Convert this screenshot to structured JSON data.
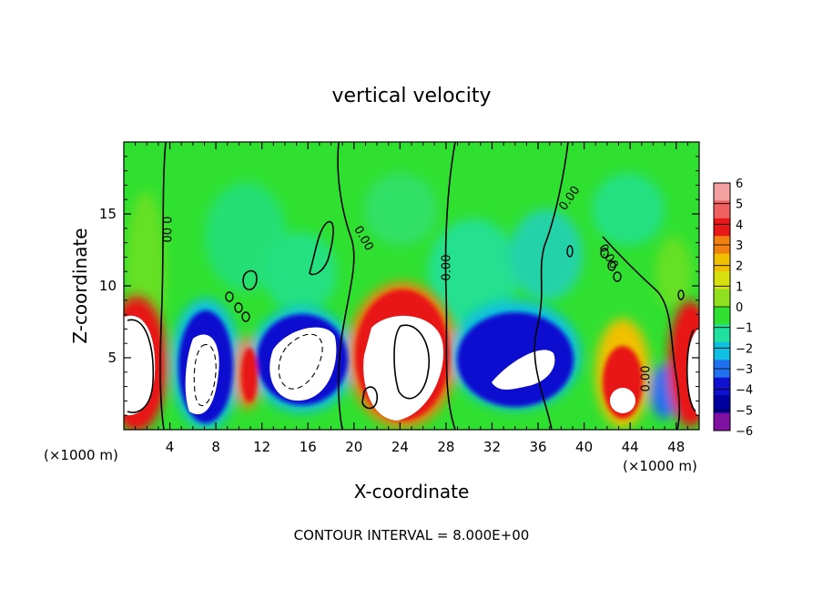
{
  "chart_data": {
    "type": "heatmap",
    "title": "vertical velocity",
    "xlabel": "X-coordinate",
    "ylabel": "Z-coordinate",
    "x_unit_left": "(×1000 m)",
    "x_unit_right": "(×1000 m)",
    "xlim": [
      0,
      50
    ],
    "ylim": [
      0,
      20
    ],
    "x_ticks": [
      4,
      8,
      12,
      16,
      20,
      24,
      28,
      32,
      36,
      40,
      44,
      48
    ],
    "y_ticks": [
      5,
      10,
      15
    ],
    "contour_interval_text": "CONTOUR INTERVAL = 8.000E+00",
    "contour_labels": [
      "0.00",
      "0.00",
      "0.00",
      "0.00",
      "0.00",
      "0.00"
    ],
    "colorbar": {
      "ticks": [
        6,
        5,
        4,
        3,
        2,
        1,
        0,
        -1,
        -2,
        -3,
        -4,
        -5,
        -6
      ],
      "colors": [
        "#f4a0a0",
        "#f06060",
        "#e81818",
        "#f08010",
        "#f0c000",
        "#d8e010",
        "#90e020",
        "#30e030",
        "#20e0a0",
        "#10c0e0",
        "#2070f0",
        "#1010d0",
        "#0000a0",
        "#8010a0"
      ]
    },
    "grid": false,
    "legend": "right"
  }
}
